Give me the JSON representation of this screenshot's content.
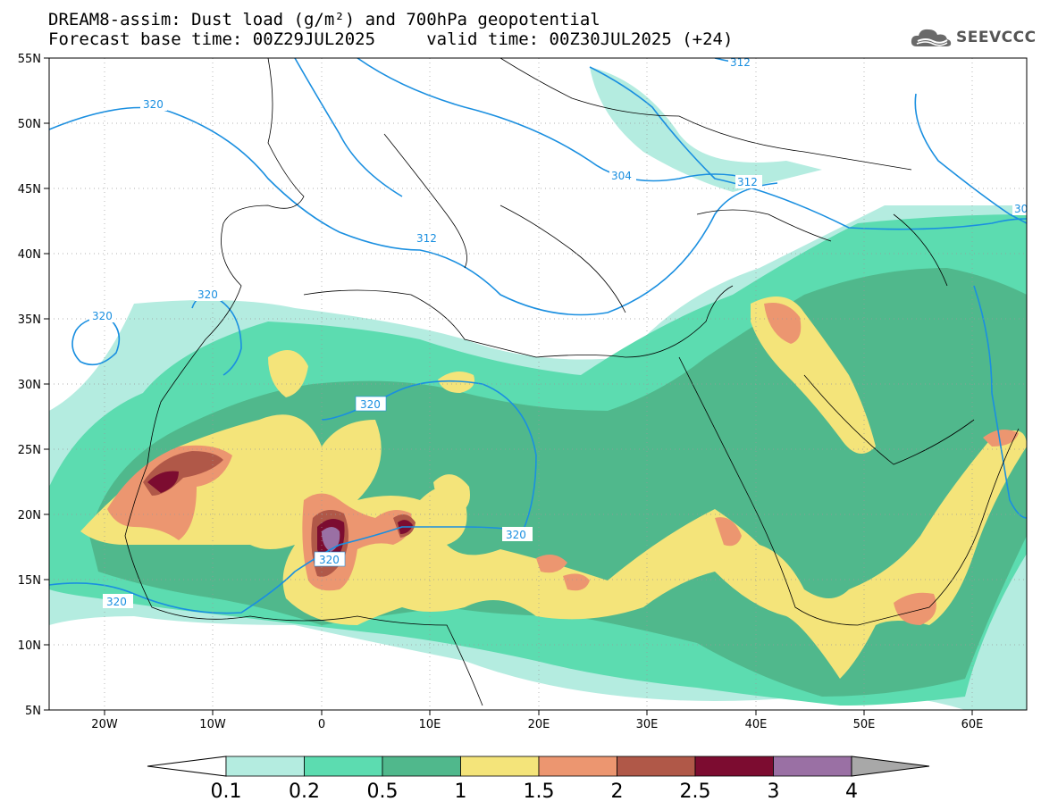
{
  "title": {
    "line1": "DREAM8-assim: Dust load (g/m²) and 700hPa geopotential",
    "line2": "Forecast base time: 00Z29JUL2025     valid time: 00Z30JUL2025 (+24)"
  },
  "logo": {
    "text": "SEEVCCC",
    "icon": "cloud-logo-icon"
  },
  "map": {
    "lon_range": [
      -25,
      65
    ],
    "lat_range": [
      5,
      55
    ],
    "lon_ticks": [
      "20W",
      "10W",
      "0",
      "10E",
      "20E",
      "30E",
      "40E",
      "50E",
      "60E"
    ],
    "lat_ticks": [
      "55N",
      "50N",
      "45N",
      "40N",
      "35N",
      "30N",
      "25N",
      "20N",
      "15N",
      "10N",
      "5N"
    ],
    "grid": "dotted"
  },
  "contour_labels": [
    "320",
    "320",
    "320",
    "320",
    "320",
    "320",
    "320",
    "312",
    "312",
    "312",
    "304",
    "30"
  ],
  "colorbar": {
    "labels": [
      "0.1",
      "0.2",
      "0.5",
      "1",
      "1.5",
      "2",
      "2.5",
      "3",
      "4"
    ],
    "colors": [
      "#b4ece0",
      "#5cdcb0",
      "#50b88c",
      "#f4e47a",
      "#ec9670",
      "#b05848",
      "#7c0c30",
      "#9a70a4",
      "#a8a8a8"
    ],
    "under_color": "#ffffff"
  }
}
